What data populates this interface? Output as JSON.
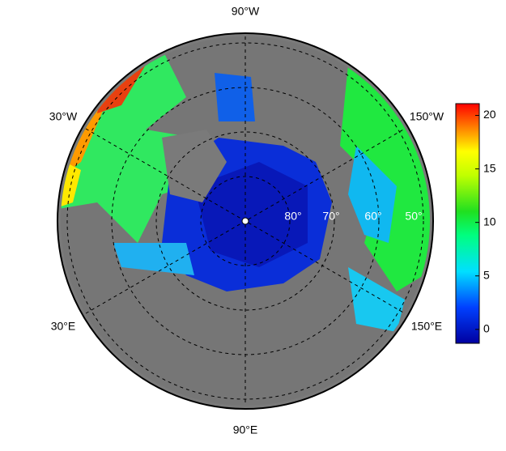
{
  "map": {
    "longitude_labels": {
      "top": "90°W",
      "upper_left": "30°W",
      "upper_right": "150°W",
      "lower_left": "30°E",
      "lower_right": "150°E",
      "bottom": "90°E"
    },
    "latitude_labels": [
      "80°",
      "70°",
      "60°",
      "50°"
    ]
  },
  "colorbar": {
    "range": [
      -1.3,
      21.1
    ],
    "ticks": [
      0,
      5,
      10,
      15,
      20
    ]
  }
}
